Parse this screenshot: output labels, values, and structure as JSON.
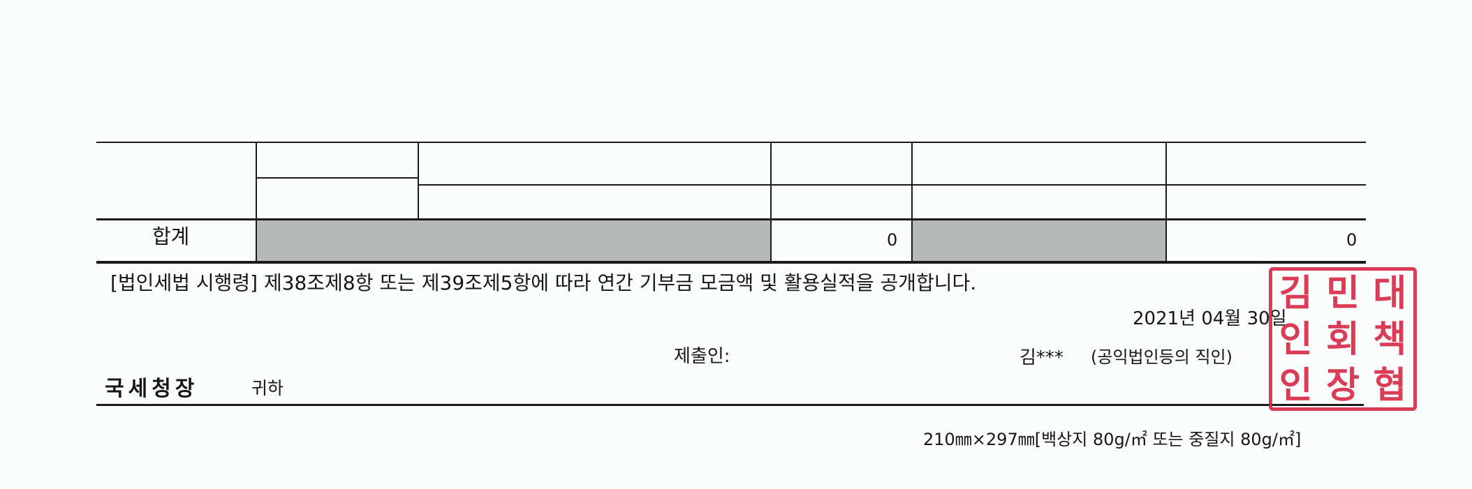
{
  "table": {
    "total_label": "합계",
    "total_col1": "0",
    "total_col2": "0"
  },
  "notice": "[법인세법 시행령] 제38조제8항 또는 제39조제5항에 따라 연간 기부금 모금액 및 활용실적을 공개합니다.",
  "date": "2021년  04월  30일",
  "submitter_label": "제출인:",
  "submitter_name": "김***",
  "submitter_seal_note": "(공익법인등의 직인)",
  "recipient": "국세청장",
  "recipient_suffix": "귀하",
  "paper_spec": "210㎜×297㎜[백상지 80g/㎡ 또는 중질지 80g/㎡]",
  "stamp": {
    "chars": [
      "김",
      "민",
      "대",
      "인",
      "회",
      "책",
      "인",
      "장",
      "협"
    ],
    "color": "#d6213f"
  }
}
